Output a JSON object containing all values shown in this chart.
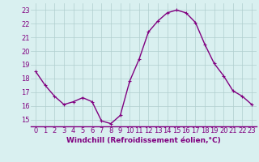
{
  "x": [
    0,
    1,
    2,
    3,
    4,
    5,
    6,
    7,
    8,
    9,
    10,
    11,
    12,
    13,
    14,
    15,
    16,
    17,
    18,
    19,
    20,
    21,
    22,
    23
  ],
  "y": [
    18.5,
    17.5,
    16.7,
    16.1,
    16.3,
    16.6,
    16.3,
    14.9,
    14.7,
    15.3,
    17.8,
    19.4,
    21.4,
    22.2,
    22.8,
    23.0,
    22.8,
    22.1,
    20.5,
    19.1,
    18.2,
    17.1,
    16.7,
    16.1
  ],
  "line_color": "#800080",
  "marker": "+",
  "marker_size": 3,
  "bg_color": "#d9f0f0",
  "grid_color": "#b0cece",
  "xlabel": "Windchill (Refroidissement éolien,°C)",
  "xlabel_color": "#800080",
  "xlabel_fontsize": 6.5,
  "tick_color": "#800080",
  "tick_fontsize": 6.0,
  "ylim": [
    14.5,
    23.5
  ],
  "yticks": [
    15,
    16,
    17,
    18,
    19,
    20,
    21,
    22,
    23
  ],
  "xlim": [
    -0.5,
    23.5
  ],
  "xticks": [
    0,
    1,
    2,
    3,
    4,
    5,
    6,
    7,
    8,
    9,
    10,
    11,
    12,
    13,
    14,
    15,
    16,
    17,
    18,
    19,
    20,
    21,
    22,
    23
  ],
  "line_width": 1.0,
  "marker_edge_width": 0.8,
  "spine_color": "#800080",
  "bottom_spine_color": "#800080"
}
